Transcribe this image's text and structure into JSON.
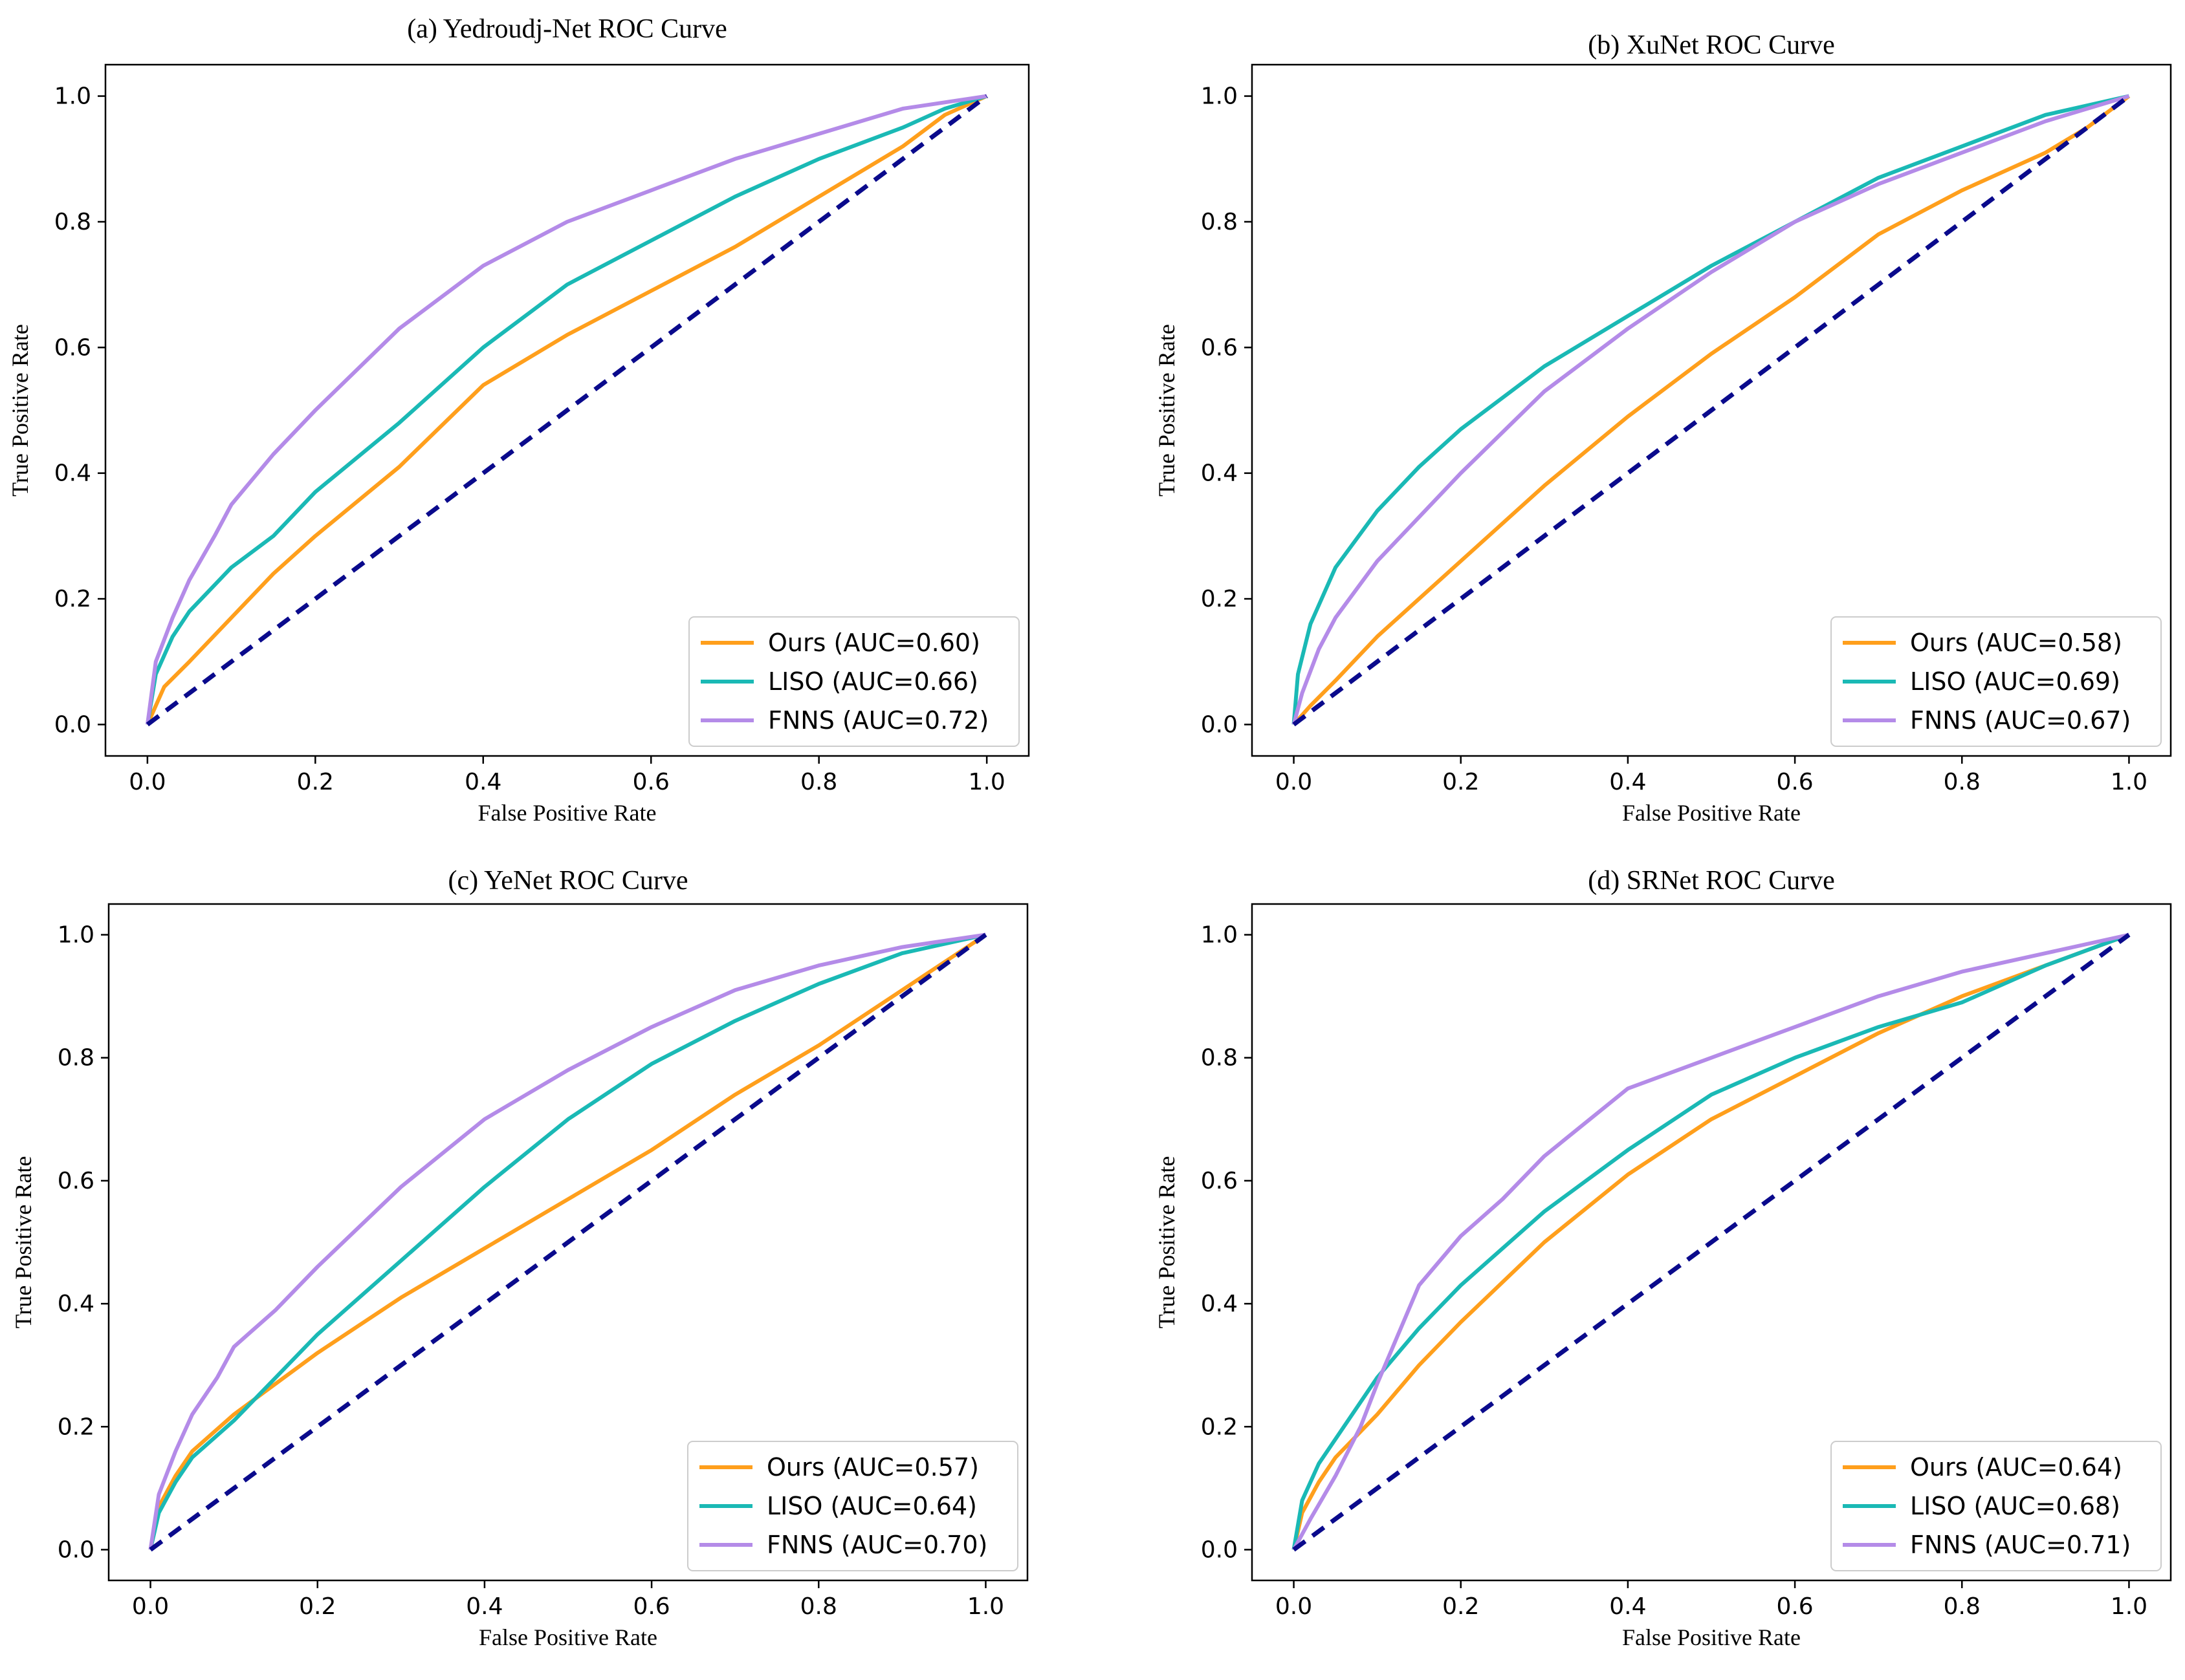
{
  "chart_data": [
    {
      "type": "line",
      "title": "(a) Yedroudj-Net ROC Curve",
      "xlabel": "False Positive Rate",
      "ylabel": "True Positive Rate",
      "xlim": [
        -0.05,
        1.05
      ],
      "ylim": [
        -0.05,
        1.05
      ],
      "xticks": [
        "0.0",
        "0.2",
        "0.4",
        "0.6",
        "0.8",
        "1.0"
      ],
      "yticks": [
        "0.0",
        "0.2",
        "0.4",
        "0.6",
        "0.8",
        "1.0"
      ],
      "legend_position": "lower-right",
      "series": [
        {
          "name": "Ours (AUC=0.60)",
          "color": "#ff9f1c",
          "x": [
            0,
            0.02,
            0.05,
            0.1,
            0.15,
            0.2,
            0.3,
            0.4,
            0.5,
            0.6,
            0.7,
            0.8,
            0.9,
            0.95,
            1.0
          ],
          "y": [
            0,
            0.06,
            0.1,
            0.17,
            0.24,
            0.3,
            0.41,
            0.54,
            0.62,
            0.69,
            0.76,
            0.84,
            0.92,
            0.97,
            1.0
          ]
        },
        {
          "name": "LISO (AUC=0.66)",
          "color": "#1ab9b5",
          "x": [
            0,
            0.01,
            0.03,
            0.05,
            0.1,
            0.15,
            0.2,
            0.3,
            0.4,
            0.5,
            0.6,
            0.7,
            0.8,
            0.9,
            0.95,
            1.0
          ],
          "y": [
            0,
            0.08,
            0.14,
            0.18,
            0.25,
            0.3,
            0.37,
            0.48,
            0.6,
            0.7,
            0.77,
            0.84,
            0.9,
            0.95,
            0.98,
            1.0
          ]
        },
        {
          "name": "FNNS (AUC=0.72)",
          "color": "#b48be8",
          "x": [
            0,
            0.01,
            0.03,
            0.05,
            0.08,
            0.1,
            0.15,
            0.2,
            0.3,
            0.4,
            0.5,
            0.6,
            0.7,
            0.8,
            0.9,
            1.0
          ],
          "y": [
            0,
            0.1,
            0.17,
            0.23,
            0.3,
            0.35,
            0.43,
            0.5,
            0.63,
            0.73,
            0.8,
            0.85,
            0.9,
            0.94,
            0.98,
            1.0
          ]
        },
        {
          "name": "baseline",
          "color": "#0a0a8c",
          "dashed": true,
          "x": [
            0,
            1
          ],
          "y": [
            0,
            1
          ]
        }
      ]
    },
    {
      "type": "line",
      "title": "(b) XuNet ROC Curve",
      "xlabel": "False Positive Rate",
      "ylabel": "True Positive Rate",
      "xlim": [
        -0.05,
        1.05
      ],
      "ylim": [
        -0.05,
        1.05
      ],
      "xticks": [
        "0.0",
        "0.2",
        "0.4",
        "0.6",
        "0.8",
        "1.0"
      ],
      "yticks": [
        "0.0",
        "0.2",
        "0.4",
        "0.6",
        "0.8",
        "1.0"
      ],
      "legend_position": "lower-right",
      "series": [
        {
          "name": "Ours (AUC=0.58)",
          "color": "#ff9f1c",
          "x": [
            0,
            0.02,
            0.05,
            0.1,
            0.15,
            0.2,
            0.3,
            0.4,
            0.5,
            0.6,
            0.7,
            0.8,
            0.9,
            0.95,
            1.0
          ],
          "y": [
            0,
            0.03,
            0.07,
            0.14,
            0.2,
            0.26,
            0.38,
            0.49,
            0.59,
            0.68,
            0.78,
            0.85,
            0.91,
            0.95,
            1.0
          ]
        },
        {
          "name": "LISO (AUC=0.69)",
          "color": "#1ab9b5",
          "x": [
            0,
            0.005,
            0.02,
            0.05,
            0.1,
            0.15,
            0.2,
            0.3,
            0.4,
            0.5,
            0.6,
            0.7,
            0.8,
            0.9,
            1.0
          ],
          "y": [
            0,
            0.08,
            0.16,
            0.25,
            0.34,
            0.41,
            0.47,
            0.57,
            0.65,
            0.73,
            0.8,
            0.87,
            0.92,
            0.97,
            1.0
          ]
        },
        {
          "name": "FNNS (AUC=0.67)",
          "color": "#b48be8",
          "x": [
            0,
            0.01,
            0.03,
            0.05,
            0.1,
            0.15,
            0.2,
            0.3,
            0.4,
            0.5,
            0.6,
            0.7,
            0.8,
            0.9,
            1.0
          ],
          "y": [
            0,
            0.05,
            0.12,
            0.17,
            0.26,
            0.33,
            0.4,
            0.53,
            0.63,
            0.72,
            0.8,
            0.86,
            0.91,
            0.96,
            1.0
          ]
        },
        {
          "name": "baseline",
          "color": "#0a0a8c",
          "dashed": true,
          "x": [
            0,
            1
          ],
          "y": [
            0,
            1
          ]
        }
      ]
    },
    {
      "type": "line",
      "title": "(c) YeNet ROC Curve",
      "xlabel": "False Positive Rate",
      "ylabel": "True Positive Rate",
      "xlim": [
        -0.05,
        1.05
      ],
      "ylim": [
        -0.05,
        1.05
      ],
      "xticks": [
        "0.0",
        "0.2",
        "0.4",
        "0.6",
        "0.8",
        "1.0"
      ],
      "yticks": [
        "0.0",
        "0.2",
        "0.4",
        "0.6",
        "0.8",
        "1.0"
      ],
      "legend_position": "lower-right",
      "series": [
        {
          "name": "Ours (AUC=0.57)",
          "color": "#ff9f1c",
          "x": [
            0,
            0.01,
            0.03,
            0.05,
            0.1,
            0.15,
            0.2,
            0.3,
            0.4,
            0.5,
            0.6,
            0.7,
            0.8,
            0.9,
            1.0
          ],
          "y": [
            0,
            0.07,
            0.12,
            0.16,
            0.22,
            0.27,
            0.32,
            0.41,
            0.49,
            0.57,
            0.65,
            0.74,
            0.82,
            0.91,
            1.0
          ]
        },
        {
          "name": "LISO (AUC=0.64)",
          "color": "#1ab9b5",
          "x": [
            0,
            0.01,
            0.03,
            0.05,
            0.1,
            0.15,
            0.2,
            0.3,
            0.4,
            0.5,
            0.6,
            0.7,
            0.8,
            0.9,
            1.0
          ],
          "y": [
            0,
            0.06,
            0.11,
            0.15,
            0.21,
            0.28,
            0.35,
            0.47,
            0.59,
            0.7,
            0.79,
            0.86,
            0.92,
            0.97,
            1.0
          ]
        },
        {
          "name": "FNNS (AUC=0.70)",
          "color": "#b48be8",
          "x": [
            0,
            0.01,
            0.03,
            0.05,
            0.08,
            0.1,
            0.15,
            0.2,
            0.3,
            0.4,
            0.5,
            0.6,
            0.7,
            0.8,
            0.9,
            1.0
          ],
          "y": [
            0,
            0.09,
            0.16,
            0.22,
            0.28,
            0.33,
            0.39,
            0.46,
            0.59,
            0.7,
            0.78,
            0.85,
            0.91,
            0.95,
            0.98,
            1.0
          ]
        },
        {
          "name": "baseline",
          "color": "#0a0a8c",
          "dashed": true,
          "x": [
            0,
            1
          ],
          "y": [
            0,
            1
          ]
        }
      ]
    },
    {
      "type": "line",
      "title": "(d) SRNet ROC Curve",
      "xlabel": "False Positive Rate",
      "ylabel": "True Positive Rate",
      "xlim": [
        -0.05,
        1.05
      ],
      "ylim": [
        -0.05,
        1.05
      ],
      "xticks": [
        "0.0",
        "0.2",
        "0.4",
        "0.6",
        "0.8",
        "1.0"
      ],
      "yticks": [
        "0.0",
        "0.2",
        "0.4",
        "0.6",
        "0.8",
        "1.0"
      ],
      "legend_position": "lower-right",
      "series": [
        {
          "name": "Ours (AUC=0.64)",
          "color": "#ff9f1c",
          "x": [
            0,
            0.01,
            0.03,
            0.05,
            0.1,
            0.15,
            0.2,
            0.3,
            0.4,
            0.5,
            0.6,
            0.7,
            0.8,
            0.9,
            1.0
          ],
          "y": [
            0,
            0.06,
            0.11,
            0.15,
            0.22,
            0.3,
            0.37,
            0.5,
            0.61,
            0.7,
            0.77,
            0.84,
            0.9,
            0.95,
            1.0
          ]
        },
        {
          "name": "LISO (AUC=0.68)",
          "color": "#1ab9b5",
          "x": [
            0,
            0.01,
            0.03,
            0.05,
            0.1,
            0.15,
            0.2,
            0.3,
            0.4,
            0.5,
            0.6,
            0.7,
            0.8,
            0.9,
            1.0
          ],
          "y": [
            0,
            0.08,
            0.14,
            0.18,
            0.28,
            0.36,
            0.43,
            0.55,
            0.65,
            0.74,
            0.8,
            0.85,
            0.89,
            0.95,
            1.0
          ]
        },
        {
          "name": "FNNS (AUC=0.71)",
          "color": "#b48be8",
          "x": [
            0,
            0.02,
            0.05,
            0.08,
            0.1,
            0.15,
            0.2,
            0.25,
            0.3,
            0.4,
            0.5,
            0.6,
            0.7,
            0.8,
            0.9,
            1.0
          ],
          "y": [
            0,
            0.05,
            0.12,
            0.2,
            0.27,
            0.43,
            0.51,
            0.57,
            0.64,
            0.75,
            0.8,
            0.85,
            0.9,
            0.94,
            0.97,
            1.0
          ]
        },
        {
          "name": "baseline",
          "color": "#0a0a8c",
          "dashed": true,
          "x": [
            0,
            1
          ],
          "y": [
            0,
            1
          ]
        }
      ]
    }
  ]
}
